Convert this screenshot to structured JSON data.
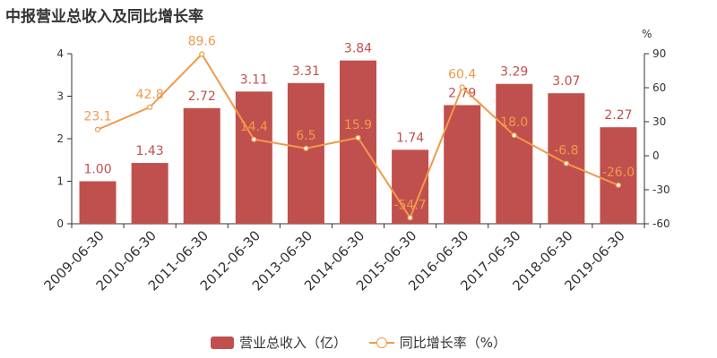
{
  "title": "中报营业总收入及同比增长率",
  "chart_data": {
    "type": "bar",
    "title": "中报营业总收入及同比增长率",
    "categories": [
      "2009-06-30",
      "2010-06-30",
      "2011-06-30",
      "2012-06-30",
      "2013-06-30",
      "2014-06-30",
      "2015-06-30",
      "2016-06-30",
      "2017-06-30",
      "2018-06-30",
      "2019-06-30"
    ],
    "series": [
      {
        "name": "营业总收入（亿）",
        "type": "bar",
        "axis": "left",
        "color": "#c0504d",
        "values": [
          1.0,
          1.43,
          2.72,
          3.11,
          3.31,
          3.84,
          1.74,
          2.79,
          3.29,
          3.07,
          2.27
        ],
        "labels": [
          "1.00",
          "1.43",
          "2.72",
          "3.11",
          "3.31",
          "3.84",
          "1.74",
          "2.79",
          "3.29",
          "3.07",
          "2.27"
        ]
      },
      {
        "name": "同比增长率（%）",
        "type": "line",
        "axis": "right",
        "color": "#f2994a",
        "values": [
          23.1,
          42.8,
          89.6,
          14.4,
          6.5,
          15.9,
          -54.7,
          60.4,
          18.0,
          -6.8,
          -26.0
        ],
        "labels": [
          "23.1",
          "42.8",
          "89.6",
          "14.4",
          "6.5",
          "15.9",
          "-54.7",
          "60.4",
          "18.0",
          "-6.8",
          "-26.0"
        ]
      }
    ],
    "y_left": {
      "min": 0,
      "max": 4,
      "ticks": [
        "0",
        "1",
        "2",
        "3",
        "4"
      ]
    },
    "y_right": {
      "min": -60,
      "max": 90,
      "unit": "%",
      "ticks": [
        "-60",
        "-30",
        "0",
        "30",
        "60",
        "90"
      ]
    },
    "legend_position": "bottom"
  }
}
